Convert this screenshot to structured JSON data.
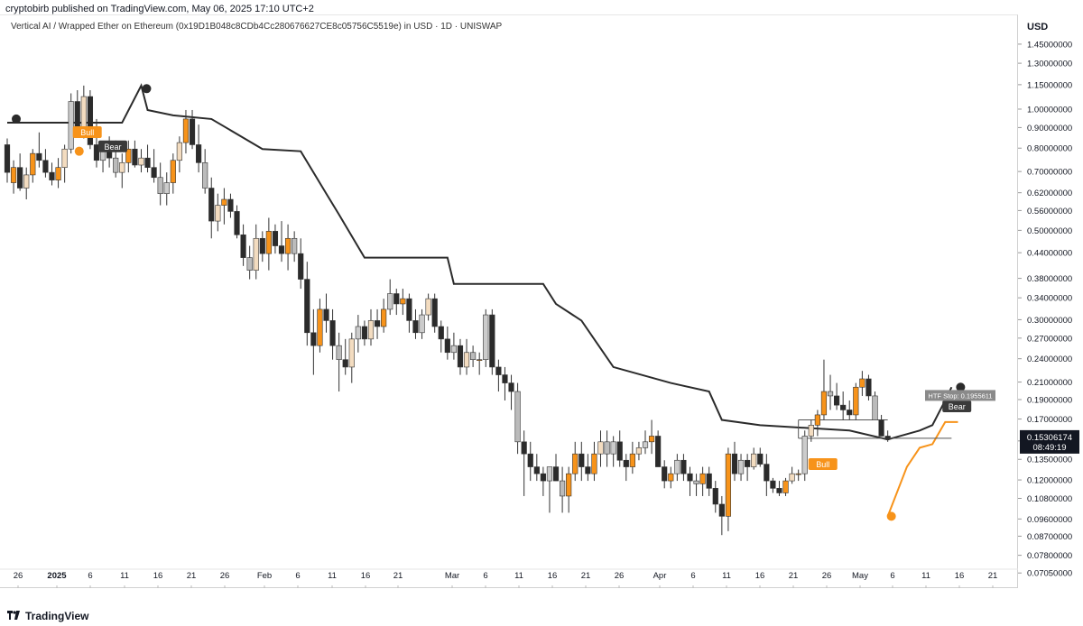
{
  "header": {
    "publisher": "cryptobirb published on TradingView.com, May 06, 2025 17:10 UTC+2",
    "symbol": "Vertical AI / Wrapped Ether on Ethereum (0x19D1B048c8CDb4Cc280676627CE8c05756C5519e) in USD · 1D · UNISWAP"
  },
  "currency": "USD",
  "footer": {
    "brand": "TradingView"
  },
  "colors": {
    "bull": "#f7931a",
    "bear": "#2b2b2b",
    "neutral": "#cccccc",
    "line": "#2b2b2b",
    "accent": "#f7931a"
  },
  "chart_data": {
    "type": "candlestick",
    "yscale": "log",
    "ylim": [
      0.066,
      1.55
    ],
    "y_ticks": [
      "1.45000000",
      "1.30000000",
      "1.15000000",
      "1.00000000",
      "0.90000000",
      "0.80000000",
      "0.70000000",
      "0.62000000",
      "0.56000000",
      "0.50000000",
      "0.44000000",
      "0.38000000",
      "0.34000000",
      "0.30000000",
      "0.27000000",
      "0.24000000",
      "0.21000000",
      "0.19000000",
      "0.17000000",
      "0.15000000",
      "0.13500000",
      "0.12000000",
      "0.10800000",
      "0.09600000",
      "0.08700000",
      "0.07800000",
      "0.07050000"
    ],
    "x_ticks": [
      "26",
      "2025",
      "6",
      "11",
      "16",
      "21",
      "26",
      "Feb",
      "6",
      "11",
      "16",
      "21",
      "Mar",
      "6",
      "11",
      "16",
      "21",
      "26",
      "Apr",
      "6",
      "11",
      "16",
      "21",
      "26",
      "May",
      "6",
      "11",
      "16",
      "21"
    ],
    "last_price_label": "0.15306174",
    "countdown_label": "08:49:19",
    "htf_stop_label": "HTF Stop: 0.1955611",
    "markers": [
      "Bull",
      "Bear",
      "Bull",
      "Bear"
    ],
    "candles": [
      [
        0.82,
        0.85,
        0.66,
        0.7
      ],
      [
        0.66,
        0.75,
        0.62,
        0.72
      ],
      [
        0.72,
        0.78,
        0.63,
        0.64
      ],
      [
        0.64,
        0.72,
        0.6,
        0.69
      ],
      [
        0.69,
        0.8,
        0.66,
        0.78
      ],
      [
        0.78,
        0.88,
        0.72,
        0.75
      ],
      [
        0.75,
        0.8,
        0.68,
        0.7
      ],
      [
        0.7,
        0.74,
        0.65,
        0.67
      ],
      [
        0.67,
        0.76,
        0.64,
        0.72
      ],
      [
        0.72,
        0.82,
        0.66,
        0.8
      ],
      [
        0.8,
        1.1,
        0.78,
        1.05
      ],
      [
        1.05,
        1.12,
        0.86,
        0.88
      ],
      [
        0.88,
        1.15,
        0.85,
        1.08
      ],
      [
        1.08,
        1.12,
        0.8,
        0.82
      ],
      [
        0.82,
        0.95,
        0.72,
        0.75
      ],
      [
        0.75,
        0.82,
        0.7,
        0.8
      ],
      [
        0.8,
        0.86,
        0.72,
        0.76
      ],
      [
        0.76,
        0.84,
        0.68,
        0.7
      ],
      [
        0.7,
        0.78,
        0.64,
        0.74
      ],
      [
        0.74,
        0.84,
        0.7,
        0.8
      ],
      [
        0.8,
        0.84,
        0.72,
        0.73
      ],
      [
        0.73,
        0.8,
        0.7,
        0.76
      ],
      [
        0.76,
        0.82,
        0.7,
        0.72
      ],
      [
        0.72,
        0.8,
        0.66,
        0.68
      ],
      [
        0.68,
        0.74,
        0.58,
        0.62
      ],
      [
        0.62,
        0.7,
        0.58,
        0.66
      ],
      [
        0.66,
        0.78,
        0.62,
        0.75
      ],
      [
        0.75,
        0.86,
        0.7,
        0.83
      ],
      [
        0.83,
        1.0,
        0.78,
        0.95
      ],
      [
        0.95,
        1.0,
        0.8,
        0.82
      ],
      [
        0.82,
        0.92,
        0.7,
        0.74
      ],
      [
        0.74,
        0.8,
        0.62,
        0.64
      ],
      [
        0.64,
        0.68,
        0.48,
        0.53
      ],
      [
        0.53,
        0.62,
        0.5,
        0.58
      ],
      [
        0.58,
        0.64,
        0.52,
        0.6
      ],
      [
        0.6,
        0.62,
        0.54,
        0.56
      ],
      [
        0.56,
        0.58,
        0.48,
        0.49
      ],
      [
        0.49,
        0.52,
        0.41,
        0.43
      ],
      [
        0.43,
        0.46,
        0.38,
        0.4
      ],
      [
        0.4,
        0.52,
        0.38,
        0.48
      ],
      [
        0.48,
        0.5,
        0.42,
        0.44
      ],
      [
        0.44,
        0.54,
        0.4,
        0.5
      ],
      [
        0.5,
        0.52,
        0.44,
        0.46
      ],
      [
        0.46,
        0.53,
        0.42,
        0.44
      ],
      [
        0.44,
        0.52,
        0.4,
        0.48
      ],
      [
        0.48,
        0.5,
        0.42,
        0.44
      ],
      [
        0.44,
        0.48,
        0.36,
        0.38
      ],
      [
        0.38,
        0.42,
        0.26,
        0.28
      ],
      [
        0.28,
        0.32,
        0.22,
        0.26
      ],
      [
        0.26,
        0.34,
        0.25,
        0.32
      ],
      [
        0.32,
        0.35,
        0.28,
        0.3
      ],
      [
        0.3,
        0.32,
        0.24,
        0.26
      ],
      [
        0.26,
        0.28,
        0.2,
        0.24
      ],
      [
        0.24,
        0.27,
        0.22,
        0.23
      ],
      [
        0.23,
        0.28,
        0.21,
        0.27
      ],
      [
        0.27,
        0.31,
        0.25,
        0.29
      ],
      [
        0.29,
        0.3,
        0.26,
        0.27
      ],
      [
        0.27,
        0.32,
        0.26,
        0.3
      ],
      [
        0.3,
        0.32,
        0.27,
        0.29
      ],
      [
        0.29,
        0.34,
        0.28,
        0.32
      ],
      [
        0.32,
        0.38,
        0.31,
        0.35
      ],
      [
        0.35,
        0.36,
        0.31,
        0.33
      ],
      [
        0.33,
        0.36,
        0.31,
        0.34
      ],
      [
        0.34,
        0.35,
        0.28,
        0.3
      ],
      [
        0.3,
        0.32,
        0.27,
        0.28
      ],
      [
        0.28,
        0.32,
        0.27,
        0.31
      ],
      [
        0.31,
        0.35,
        0.3,
        0.34
      ],
      [
        0.34,
        0.35,
        0.28,
        0.29
      ],
      [
        0.29,
        0.3,
        0.25,
        0.27
      ],
      [
        0.27,
        0.29,
        0.24,
        0.25
      ],
      [
        0.25,
        0.28,
        0.24,
        0.26
      ],
      [
        0.26,
        0.27,
        0.22,
        0.23
      ],
      [
        0.23,
        0.27,
        0.22,
        0.25
      ],
      [
        0.25,
        0.26,
        0.23,
        0.24
      ],
      [
        0.24,
        0.25,
        0.22,
        0.24
      ],
      [
        0.24,
        0.32,
        0.23,
        0.31
      ],
      [
        0.31,
        0.32,
        0.22,
        0.23
      ],
      [
        0.23,
        0.24,
        0.2,
        0.22
      ],
      [
        0.22,
        0.23,
        0.19,
        0.21
      ],
      [
        0.21,
        0.22,
        0.18,
        0.2
      ],
      [
        0.2,
        0.21,
        0.14,
        0.15
      ],
      [
        0.15,
        0.16,
        0.11,
        0.14
      ],
      [
        0.14,
        0.15,
        0.12,
        0.13
      ],
      [
        0.13,
        0.14,
        0.12,
        0.125
      ],
      [
        0.125,
        0.13,
        0.11,
        0.12
      ],
      [
        0.12,
        0.13,
        0.1,
        0.13
      ],
      [
        0.13,
        0.14,
        0.12,
        0.12
      ],
      [
        0.12,
        0.13,
        0.1,
        0.11
      ],
      [
        0.11,
        0.13,
        0.1,
        0.125
      ],
      [
        0.125,
        0.15,
        0.12,
        0.14
      ],
      [
        0.14,
        0.15,
        0.12,
        0.13
      ],
      [
        0.13,
        0.14,
        0.12,
        0.125
      ],
      [
        0.125,
        0.15,
        0.12,
        0.14
      ],
      [
        0.14,
        0.16,
        0.13,
        0.15
      ],
      [
        0.15,
        0.16,
        0.13,
        0.14
      ],
      [
        0.14,
        0.155,
        0.13,
        0.15
      ],
      [
        0.15,
        0.16,
        0.13,
        0.135
      ],
      [
        0.135,
        0.14,
        0.12,
        0.13
      ],
      [
        0.13,
        0.15,
        0.125,
        0.14
      ],
      [
        0.14,
        0.15,
        0.135,
        0.145
      ],
      [
        0.145,
        0.16,
        0.14,
        0.15
      ],
      [
        0.15,
        0.17,
        0.14,
        0.155
      ],
      [
        0.155,
        0.16,
        0.13,
        0.13
      ],
      [
        0.13,
        0.135,
        0.115,
        0.12
      ],
      [
        0.12,
        0.13,
        0.115,
        0.125
      ],
      [
        0.125,
        0.14,
        0.12,
        0.135
      ],
      [
        0.135,
        0.14,
        0.12,
        0.125
      ],
      [
        0.125,
        0.13,
        0.11,
        0.12
      ],
      [
        0.12,
        0.125,
        0.11,
        0.118
      ],
      [
        0.118,
        0.13,
        0.11,
        0.125
      ],
      [
        0.125,
        0.13,
        0.11,
        0.115
      ],
      [
        0.115,
        0.12,
        0.1,
        0.105
      ],
      [
        0.105,
        0.11,
        0.088,
        0.098
      ],
      [
        0.098,
        0.145,
        0.09,
        0.14
      ],
      [
        0.14,
        0.15,
        0.12,
        0.125
      ],
      [
        0.125,
        0.14,
        0.12,
        0.135
      ],
      [
        0.135,
        0.14,
        0.12,
        0.13
      ],
      [
        0.13,
        0.145,
        0.128,
        0.14
      ],
      [
        0.14,
        0.145,
        0.13,
        0.132
      ],
      [
        0.132,
        0.14,
        0.11,
        0.12
      ],
      [
        0.12,
        0.122,
        0.112,
        0.115
      ],
      [
        0.115,
        0.12,
        0.11,
        0.112
      ],
      [
        0.112,
        0.122,
        0.11,
        0.12
      ],
      [
        0.12,
        0.13,
        0.118,
        0.125
      ],
      [
        0.125,
        0.128,
        0.12,
        0.125
      ],
      [
        0.125,
        0.16,
        0.12,
        0.155
      ],
      [
        0.155,
        0.17,
        0.15,
        0.165
      ],
      [
        0.165,
        0.18,
        0.155,
        0.175
      ],
      [
        0.175,
        0.24,
        0.17,
        0.2
      ],
      [
        0.2,
        0.22,
        0.18,
        0.195
      ],
      [
        0.195,
        0.21,
        0.18,
        0.185
      ],
      [
        0.185,
        0.2,
        0.17,
        0.18
      ],
      [
        0.18,
        0.19,
        0.17,
        0.175
      ],
      [
        0.175,
        0.21,
        0.17,
        0.205
      ],
      [
        0.205,
        0.225,
        0.195,
        0.215
      ],
      [
        0.215,
        0.22,
        0.19,
        0.195
      ],
      [
        0.195,
        0.2,
        0.17,
        0.17
      ],
      [
        0.17,
        0.175,
        0.155,
        0.155
      ],
      [
        0.155,
        0.16,
        0.15,
        0.153
      ]
    ],
    "candle_colors": "auto",
    "stop_line": [
      [
        0,
        0.93
      ],
      [
        18,
        0.93
      ],
      [
        21,
        1.15
      ],
      [
        22,
        1.0
      ],
      [
        26,
        0.97
      ],
      [
        32,
        0.95
      ],
      [
        40,
        0.8
      ],
      [
        46,
        0.79
      ],
      [
        50,
        0.62
      ],
      [
        52,
        0.55
      ],
      [
        56,
        0.43
      ],
      [
        69,
        0.43
      ],
      [
        70,
        0.37
      ],
      [
        84,
        0.37
      ],
      [
        86,
        0.33
      ],
      [
        90,
        0.3
      ],
      [
        95,
        0.23
      ],
      [
        104,
        0.21
      ],
      [
        110,
        0.2
      ],
      [
        112,
        0.17
      ],
      [
        118,
        0.165
      ],
      [
        132,
        0.16
      ],
      [
        138,
        0.152
      ],
      [
        143,
        0.16
      ],
      [
        145,
        0.165
      ],
      [
        147,
        0.19
      ],
      [
        148,
        0.205
      ]
    ],
    "htf_line": [
      [
        138,
        0.098
      ],
      [
        141,
        0.13
      ],
      [
        143,
        0.145
      ],
      [
        145,
        0.148
      ],
      [
        147,
        0.168
      ],
      [
        149,
        0.168
      ]
    ],
    "x_min": 0,
    "x_max": 160
  }
}
